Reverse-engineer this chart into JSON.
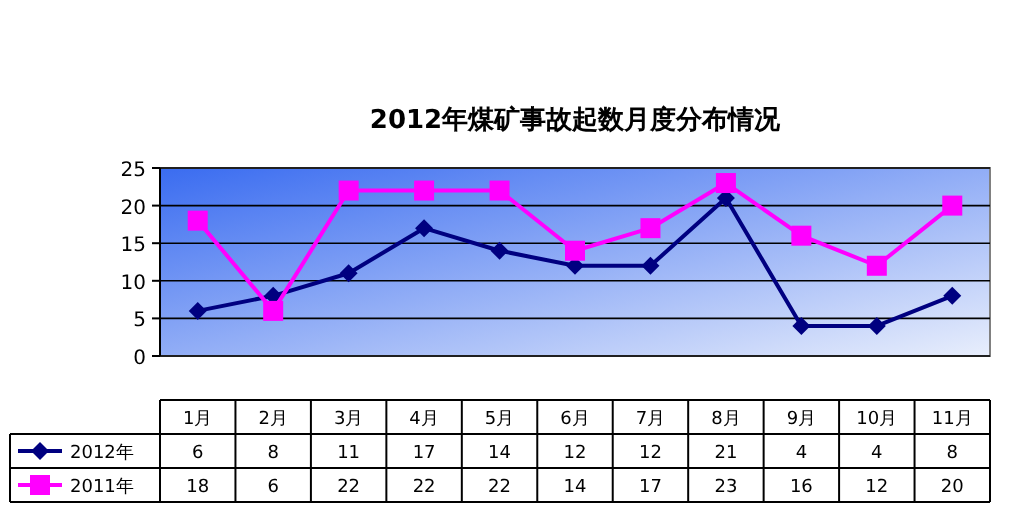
{
  "chart_data": {
    "type": "line",
    "title": "2012年煤矿事故起数月度分布情况",
    "categories": [
      "1月",
      "2月",
      "3月",
      "4月",
      "5月",
      "6月",
      "7月",
      "8月",
      "9月",
      "10月",
      "11月"
    ],
    "series": [
      {
        "name": "2012年",
        "color": "#000080",
        "marker": "diamond",
        "values": [
          6,
          8,
          11,
          17,
          14,
          12,
          12,
          21,
          4,
          4,
          8
        ]
      },
      {
        "name": "2011年",
        "color": "#ff00ff",
        "marker": "square",
        "values": [
          18,
          6,
          22,
          22,
          22,
          14,
          17,
          23,
          16,
          12,
          20
        ]
      }
    ],
    "ylim": [
      0,
      25
    ],
    "yticks": [
      0,
      5,
      10,
      15,
      20,
      25
    ],
    "grid": "y",
    "legend": "bottom",
    "data_labels": true
  }
}
